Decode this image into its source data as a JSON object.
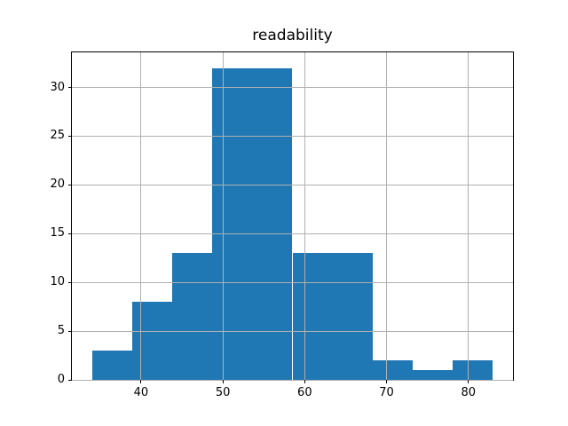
{
  "figure": {
    "title": "readability"
  },
  "chart_data": {
    "type": "histogram",
    "title": "readability",
    "xlabel": "",
    "ylabel": "",
    "bin_edges": [
      34.0,
      38.9,
      43.8,
      48.7,
      53.6,
      58.5,
      63.4,
      68.3,
      73.2,
      78.1,
      83.0
    ],
    "counts": [
      3,
      8,
      13,
      32,
      32,
      13,
      13,
      2,
      1,
      2
    ],
    "xticks": [
      40,
      50,
      60,
      70,
      80
    ],
    "yticks": [
      0,
      5,
      10,
      15,
      20,
      25,
      30
    ],
    "xlim": [
      31.55,
      85.45
    ],
    "ylim": [
      0,
      33.6
    ],
    "grid": true,
    "legend": "none",
    "bar_color": "#1f77b4",
    "grid_color": "#b0b0b0",
    "spine_color": "#000000",
    "background_color": "#ffffff"
  }
}
